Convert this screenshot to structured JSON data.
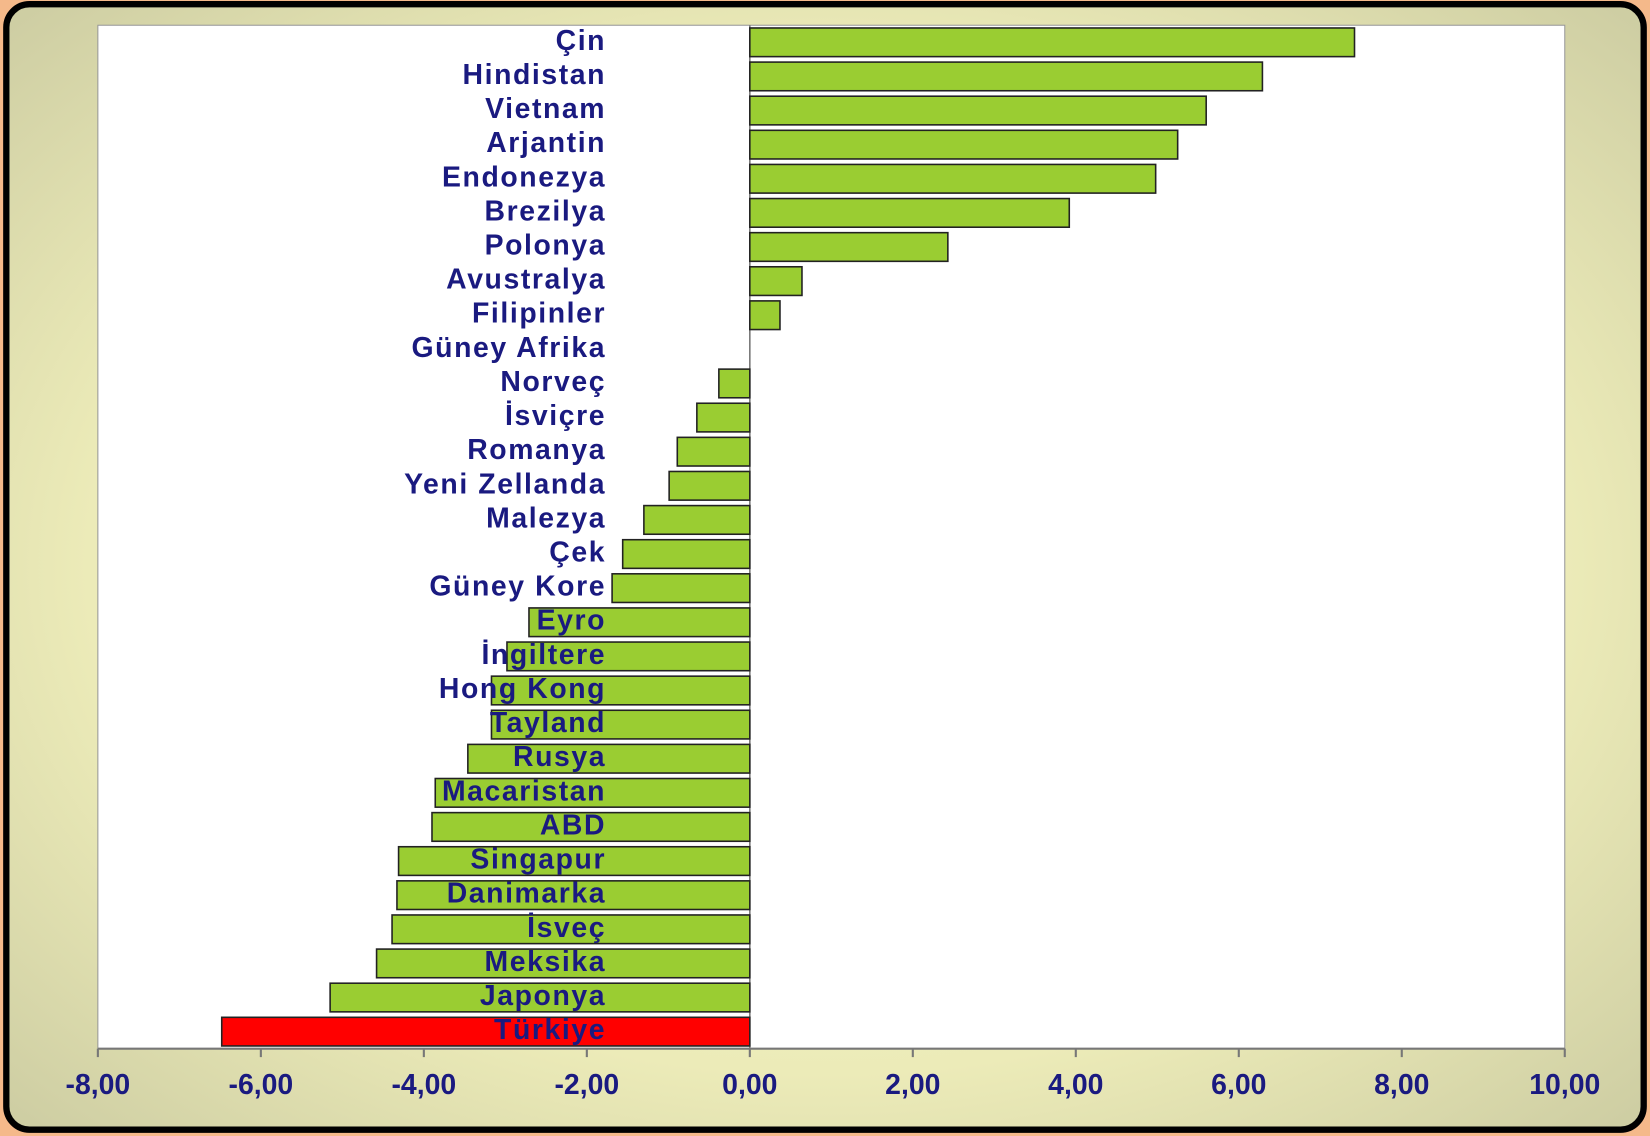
{
  "chart_data": {
    "type": "hbar",
    "categories": [
      "Çin",
      "Hindistan",
      "Vietnam",
      "Arjantin",
      "Endonezya",
      "Brezilya",
      "Polonya",
      "Avustralya",
      "Filipinler",
      "Güney Afrika",
      "Norveç",
      "İsviçre",
      "Romanya",
      "Yeni Zellanda",
      "Malezya",
      "Çek",
      "Güney Kore",
      "Eyro",
      "İngiltere",
      "Hong Kong",
      "Tayland",
      "Rusya",
      "Macaristan",
      "ABD",
      "Singapur",
      "Danimarka",
      "İsveç",
      "Meksika",
      "Japonya",
      "Türkiye"
    ],
    "values": [
      7.42,
      6.29,
      5.6,
      5.25,
      4.98,
      3.92,
      2.43,
      0.64,
      0.37,
      0,
      -0.38,
      -0.65,
      -0.89,
      -0.99,
      -1.3,
      -1.56,
      -1.69,
      -2.71,
      -2.98,
      -3.17,
      -3.17,
      -3.46,
      -3.86,
      -3.9,
      -4.31,
      -4.33,
      -4.39,
      -4.58,
      -5.15,
      -6.48
    ],
    "colors": [
      "#9acd32",
      "#9acd32",
      "#9acd32",
      "#9acd32",
      "#9acd32",
      "#9acd32",
      "#9acd32",
      "#9acd32",
      "#9acd32",
      "#9acd32",
      "#9acd32",
      "#9acd32",
      "#9acd32",
      "#9acd32",
      "#9acd32",
      "#9acd32",
      "#9acd32",
      "#9acd32",
      "#9acd32",
      "#9acd32",
      "#9acd32",
      "#9acd32",
      "#9acd32",
      "#9acd32",
      "#9acd32",
      "#9acd32",
      "#9acd32",
      "#9acd32",
      "#9acd32",
      "#ff0000"
    ],
    "xlim": [
      -8,
      10
    ],
    "xticks": [
      {
        "value": -8,
        "label": "-8,00"
      },
      {
        "value": -6,
        "label": "-6,00"
      },
      {
        "value": -4,
        "label": "-4,00"
      },
      {
        "value": -2,
        "label": "-2,00"
      },
      {
        "value": 0,
        "label": "0,00"
      },
      {
        "value": 2,
        "label": "2,00"
      },
      {
        "value": 4,
        "label": "4,00"
      },
      {
        "value": 6,
        "label": "6,00"
      },
      {
        "value": 8,
        "label": "8,00"
      },
      {
        "value": 10,
        "label": "10,00"
      }
    ]
  }
}
